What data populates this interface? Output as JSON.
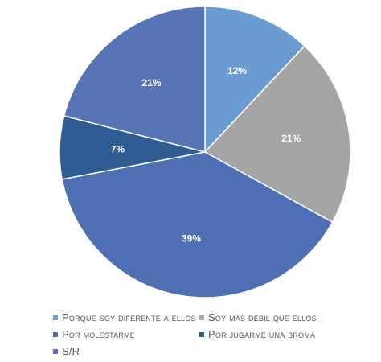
{
  "chart_data": {
    "type": "pie",
    "title": "",
    "slices": [
      {
        "label": "Porque soy diferente a ellos",
        "value": 12,
        "display": "12%",
        "color": "#6a9bd1"
      },
      {
        "label": "Soy más débil que ellos",
        "value": 21,
        "display": "21%",
        "color": "#a5a5a5"
      },
      {
        "label": "Por molestarme",
        "value": 39,
        "display": "39%",
        "color": "#4f6fb5"
      },
      {
        "label": "Por jugarme una broma",
        "value": 7,
        "display": "7%",
        "color": "#2f5c93"
      },
      {
        "label": "S/R",
        "value": 21,
        "display": "21%",
        "color": "#5774b7"
      }
    ],
    "legend_position": "bottom",
    "data_label_color": "#ffffff"
  }
}
